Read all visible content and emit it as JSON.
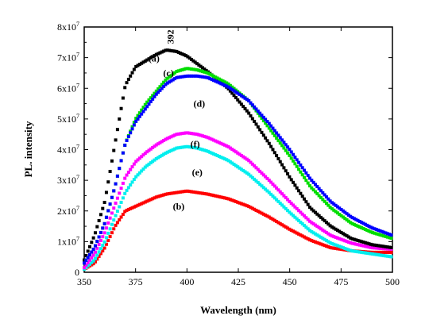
{
  "chart_data": {
    "type": "scatter",
    "xlabel": "Wavelength (nm)",
    "ylabel": "PL. intensity",
    "xlim": [
      350,
      500
    ],
    "ylim": [
      0,
      80000000
    ],
    "x_ticks": [
      "350",
      "375",
      "400",
      "425",
      "450",
      "475",
      "500"
    ],
    "y_tick_mantissas": [
      "0",
      "1x10",
      "2x10",
      "3x10",
      "4x10",
      "5x10",
      "6x10",
      "7x10",
      "8x10"
    ],
    "y_tick_exponent": "7",
    "grid": false,
    "legend": "none",
    "annotations": [
      {
        "text": "392",
        "x": 392,
        "y": 72500000
      }
    ],
    "x": [
      350,
      355,
      360,
      365,
      370,
      375,
      380,
      385,
      390,
      395,
      400,
      405,
      410,
      420,
      430,
      440,
      450,
      460,
      470,
      480,
      490,
      500
    ],
    "series": [
      {
        "label": "(a)",
        "color": "#000000",
        "label_pos": [
          384,
          0.86
        ],
        "values": [
          4.0,
          12.0,
          23.0,
          42.0,
          61.0,
          67.0,
          69.0,
          71.0,
          72.5,
          72.0,
          70.5,
          68.0,
          65.5,
          60.0,
          52.0,
          42.0,
          31.0,
          21.0,
          15.0,
          11.0,
          9.0,
          8.0
        ]
      },
      {
        "label": "(b)",
        "color": "#ff0000",
        "label_pos": [
          396,
          0.255
        ],
        "values": [
          1.0,
          3.0,
          8.0,
          15.0,
          20.0,
          21.5,
          23.0,
          24.5,
          25.5,
          26.0,
          26.5,
          26.0,
          25.5,
          24.0,
          21.5,
          18.0,
          14.0,
          10.5,
          8.0,
          7.0,
          6.5,
          6.5
        ]
      },
      {
        "label": "(c)",
        "color": "#00dd00",
        "label_pos": [
          391,
          0.8
        ],
        "values": [
          3.0,
          8.0,
          16.0,
          28.0,
          42.0,
          50.0,
          55.0,
          59.0,
          63.0,
          65.5,
          66.5,
          66.0,
          65.0,
          61.5,
          56.0,
          47.0,
          38.0,
          28.0,
          21.0,
          16.0,
          13.0,
          11.0
        ]
      },
      {
        "label": "(d)",
        "color": "#0000ff",
        "label_pos": [
          406,
          0.675
        ],
        "values": [
          3.0,
          8.0,
          16.0,
          28.0,
          42.0,
          49.0,
          53.5,
          58.0,
          61.5,
          63.5,
          64.0,
          64.0,
          63.5,
          60.5,
          56.0,
          48.5,
          40.0,
          30.5,
          23.0,
          18.0,
          14.5,
          12.0
        ]
      },
      {
        "label": "(f)",
        "color": "#ff00ff",
        "label_pos": [
          404,
          0.51
        ],
        "values": [
          1.5,
          6.0,
          13.0,
          22.0,
          31.0,
          36.0,
          39.0,
          41.5,
          43.5,
          45.0,
          45.5,
          45.0,
          44.0,
          41.0,
          36.5,
          30.0,
          23.0,
          16.5,
          12.0,
          9.5,
          8.0,
          7.5
        ]
      },
      {
        "label": "(e)",
        "color": "#00eeee",
        "label_pos": [
          405,
          0.395
        ],
        "values": [
          1.0,
          4.0,
          10.0,
          18.0,
          26.0,
          31.0,
          34.5,
          37.0,
          39.0,
          40.5,
          41.0,
          40.5,
          39.5,
          36.5,
          32.0,
          26.0,
          19.5,
          13.5,
          9.5,
          7.0,
          6.0,
          5.0
        ]
      }
    ]
  }
}
